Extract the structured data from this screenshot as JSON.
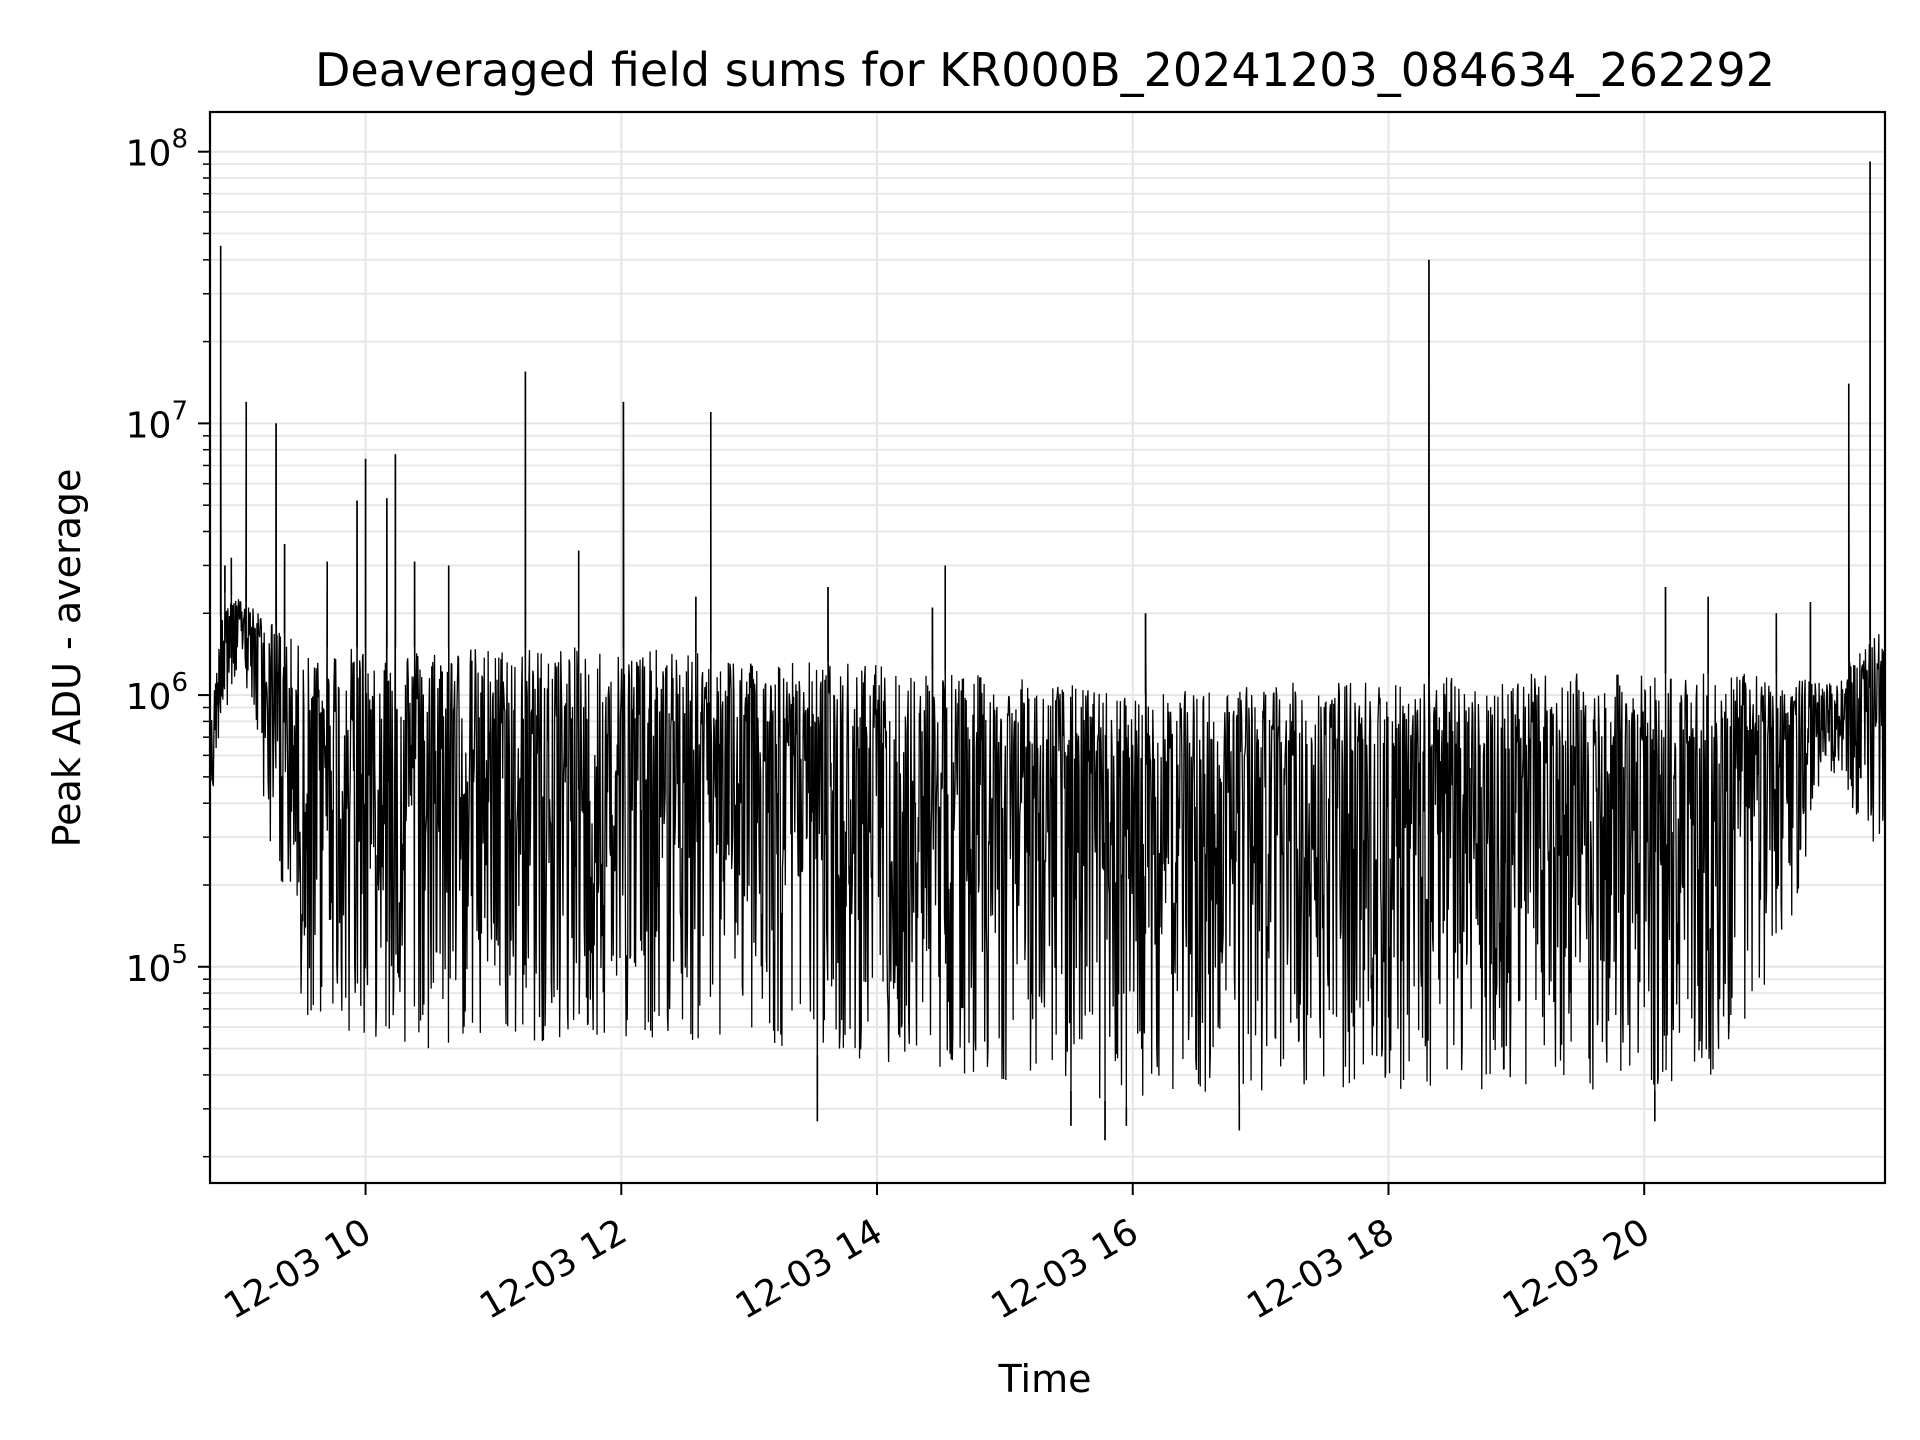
{
  "chart_data": {
    "type": "line",
    "title": "Deaveraged field sums for KR000B_20241203_084634_262292",
    "xlabel": "Time",
    "ylabel": "Peak ADU - average",
    "yscale": "log",
    "xlim": [
      "2024-12-03 08:47",
      "2024-12-03 21:53"
    ],
    "ylim": [
      16000,
      140000000
    ],
    "grid": true,
    "line_color": "#000000",
    "grid_color": "#e6e6e6",
    "x_ticks": [
      {
        "label": "12-03 10",
        "time": "2024-12-03 10:00"
      },
      {
        "label": "12-03 12",
        "time": "2024-12-03 12:00"
      },
      {
        "label": "12-03 14",
        "time": "2024-12-03 14:00"
      },
      {
        "label": "12-03 16",
        "time": "2024-12-03 16:00"
      },
      {
        "label": "12-03 18",
        "time": "2024-12-03 18:00"
      },
      {
        "label": "12-03 20",
        "time": "2024-12-03 20:00"
      }
    ],
    "y_ticks": [
      {
        "base": "10",
        "exp": "5",
        "value": 100000
      },
      {
        "base": "10",
        "exp": "6",
        "value": 1000000
      },
      {
        "base": "10",
        "exp": "7",
        "value": 10000000
      },
      {
        "base": "10",
        "exp": "8",
        "value": 100000000
      }
    ],
    "envelope": [
      {
        "time": "2024-12-03 08:47",
        "high": 700000,
        "low": 320000
      },
      {
        "time": "2024-12-03 08:53",
        "high": 2400000,
        "low": 900000
      },
      {
        "time": "2024-12-03 09:05",
        "high": 2200000,
        "low": 1000000
      },
      {
        "time": "2024-12-03 09:18",
        "high": 1800000,
        "low": 200000
      },
      {
        "time": "2024-12-03 09:30",
        "high": 1500000,
        "low": 60000
      },
      {
        "time": "2024-12-03 10:30",
        "high": 1500000,
        "low": 50000
      },
      {
        "time": "2024-12-03 12:00",
        "high": 1500000,
        "low": 55000
      },
      {
        "time": "2024-12-03 14:00",
        "high": 1300000,
        "low": 45000
      },
      {
        "time": "2024-12-03 15:30",
        "high": 1100000,
        "low": 35000
      },
      {
        "time": "2024-12-03 16:00",
        "high": 1000000,
        "low": 30000
      },
      {
        "time": "2024-12-03 17:00",
        "high": 1100000,
        "low": 35000
      },
      {
        "time": "2024-12-03 19:00",
        "high": 1200000,
        "low": 35000
      },
      {
        "time": "2024-12-03 20:30",
        "high": 1200000,
        "low": 35000
      },
      {
        "time": "2024-12-03 21:05",
        "high": 1200000,
        "low": 100000
      },
      {
        "time": "2024-12-03 21:25",
        "high": 1100000,
        "low": 500000
      },
      {
        "time": "2024-12-03 21:53",
        "high": 1800000,
        "low": 250000
      }
    ],
    "spikes": [
      {
        "time": "2024-12-03 08:52",
        "value": 45000000
      },
      {
        "time": "2024-12-03 08:54",
        "value": 3000000
      },
      {
        "time": "2024-12-03 08:57",
        "value": 3200000
      },
      {
        "time": "2024-12-03 09:04",
        "value": 12000000
      },
      {
        "time": "2024-12-03 09:18",
        "value": 10000000
      },
      {
        "time": "2024-12-03 09:22",
        "value": 3600000
      },
      {
        "time": "2024-12-03 09:42",
        "value": 3100000
      },
      {
        "time": "2024-12-03 09:56",
        "value": 5200000
      },
      {
        "time": "2024-12-03 10:00",
        "value": 7400000
      },
      {
        "time": "2024-12-03 10:10",
        "value": 5300000
      },
      {
        "time": "2024-12-03 10:14",
        "value": 7700000
      },
      {
        "time": "2024-12-03 10:23",
        "value": 3100000
      },
      {
        "time": "2024-12-03 10:39",
        "value": 3000000
      },
      {
        "time": "2024-12-03 11:15",
        "value": 15500000
      },
      {
        "time": "2024-12-03 11:40",
        "value": 3400000
      },
      {
        "time": "2024-12-03 12:01",
        "value": 12000000
      },
      {
        "time": "2024-12-03 12:42",
        "value": 11000000
      },
      {
        "time": "2024-12-03 12:35",
        "value": 2300000
      },
      {
        "time": "2024-12-03 13:37",
        "value": 2500000
      },
      {
        "time": "2024-12-03 14:26",
        "value": 2100000
      },
      {
        "time": "2024-12-03 14:32",
        "value": 3000000
      },
      {
        "time": "2024-12-03 16:06",
        "value": 2000000
      },
      {
        "time": "2024-12-03 18:19",
        "value": 40000000
      },
      {
        "time": "2024-12-03 20:10",
        "value": 2500000
      },
      {
        "time": "2024-12-03 20:30",
        "value": 2300000
      },
      {
        "time": "2024-12-03 21:02",
        "value": 2000000
      },
      {
        "time": "2024-12-03 21:18",
        "value": 2200000
      },
      {
        "time": "2024-12-03 21:36",
        "value": 14000000
      },
      {
        "time": "2024-12-03 21:46",
        "value": 92000000
      }
    ],
    "dips": [
      {
        "time": "2024-12-03 13:32",
        "value": 27000
      },
      {
        "time": "2024-12-03 15:31",
        "value": 26000
      },
      {
        "time": "2024-12-03 15:47",
        "value": 23000
      },
      {
        "time": "2024-12-03 15:57",
        "value": 26000
      },
      {
        "time": "2024-12-03 16:50",
        "value": 25000
      },
      {
        "time": "2024-12-03 20:05",
        "value": 27000
      }
    ]
  }
}
